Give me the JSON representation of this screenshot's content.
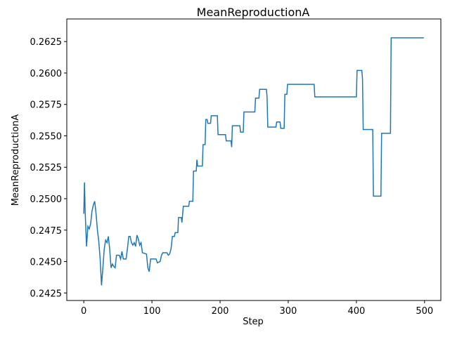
{
  "chart_data": {
    "type": "line",
    "title": "MeanReproductionA",
    "x_label": "Step",
    "y_label": "MeanReproductionA",
    "xlim": [
      -24.95,
      523.95
    ],
    "ylim": [
      0.2419,
      0.2643
    ],
    "xticks": [
      0,
      100,
      200,
      300,
      400,
      500
    ],
    "yticks": [
      0.2425,
      {
        "value": 0.245,
        "label": "0.2450"
      },
      0.2475,
      {
        "value": 0.25,
        "label": "0.2500"
      },
      0.2525,
      {
        "value": 0.255,
        "label": "0.2550"
      },
      0.2575,
      {
        "value": 0.26,
        "label": "0.2600"
      },
      0.2625
    ],
    "grid": false,
    "series": [
      {
        "color": "#1f77b4",
        "x": [
          0,
          1,
          2,
          4,
          6,
          8,
          10,
          12,
          14,
          16,
          18,
          20,
          22,
          24,
          26,
          28,
          30,
          32,
          34,
          36,
          38,
          40,
          42,
          44,
          46,
          48,
          52,
          54,
          56,
          58,
          62,
          64,
          66,
          68,
          70,
          72,
          74,
          76,
          78,
          80,
          82,
          84,
          86,
          92,
          94,
          96,
          98,
          106,
          108,
          112,
          114,
          116,
          122,
          124,
          126,
          128,
          130,
          133,
          134,
          138,
          139,
          143,
          144,
          146,
          154,
          155,
          160,
          161,
          165,
          166,
          167,
          174,
          175,
          178,
          179,
          181,
          182,
          186,
          187,
          196,
          197,
          208,
          209,
          216,
          217,
          218,
          229,
          230,
          234,
          235,
          251,
          252,
          257,
          258,
          268,
          269,
          270,
          282,
          283,
          288,
          289,
          294,
          295,
          298,
          299,
          338,
          339,
          400,
          401,
          408,
          409,
          410,
          424,
          425,
          436,
          437,
          450,
          451,
          499
        ],
        "values": [
          0.2488,
          0.2513,
          0.249,
          0.2462,
          0.2478,
          0.2476,
          0.248,
          0.249,
          0.2495,
          0.2498,
          0.2488,
          0.2475,
          0.2466,
          0.2452,
          0.2431,
          0.2445,
          0.246,
          0.2467,
          0.2465,
          0.247,
          0.246,
          0.2445,
          0.2448,
          0.2446,
          0.2445,
          0.2455,
          0.2455,
          0.2452,
          0.2458,
          0.2452,
          0.2452,
          0.246,
          0.247,
          0.247,
          0.2465,
          0.2463,
          0.2465,
          0.2462,
          0.2471,
          0.2468,
          0.2463,
          0.2465,
          0.2457,
          0.2456,
          0.2445,
          0.2442,
          0.2452,
          0.2452,
          0.2449,
          0.245,
          0.2455,
          0.2457,
          0.2457,
          0.2455,
          0.2456,
          0.246,
          0.247,
          0.247,
          0.2473,
          0.2473,
          0.2485,
          0.2485,
          0.2481,
          0.2494,
          0.2494,
          0.2498,
          0.2498,
          0.2522,
          0.2522,
          0.2531,
          0.2526,
          0.2526,
          0.2543,
          0.2543,
          0.2563,
          0.2563,
          0.256,
          0.256,
          0.2566,
          0.2566,
          0.2551,
          0.2551,
          0.2546,
          0.2546,
          0.2541,
          0.2558,
          0.2558,
          0.2553,
          0.2553,
          0.2569,
          0.2569,
          0.258,
          0.258,
          0.2587,
          0.2587,
          0.258,
          0.2557,
          0.2557,
          0.2561,
          0.2561,
          0.2556,
          0.2556,
          0.2583,
          0.2583,
          0.2591,
          0.2591,
          0.2581,
          0.2581,
          0.2602,
          0.2602,
          0.2595,
          0.2555,
          0.2555,
          0.2502,
          0.2502,
          0.2552,
          0.2552,
          0.2628,
          0.2628
        ]
      }
    ]
  }
}
